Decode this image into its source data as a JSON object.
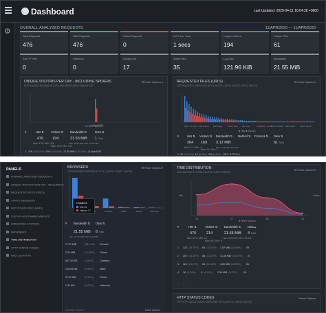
{
  "app": {
    "title": "Dashboard",
    "last_updated": "Last Updated: 2020-04-11 10:04:28 +0800"
  },
  "overall": {
    "title": "OVERALL ANALYZED REQUESTS",
    "date_range": "11/APR/2020 — 11/APR/2020",
    "cards": [
      {
        "label": "Total Requests",
        "value": "476",
        "color": "#8a9099"
      },
      {
        "label": "Valid Requests",
        "value": "476",
        "color": "#3fb34f"
      },
      {
        "label": "Failed Requests",
        "value": "0",
        "color": "#e04545"
      },
      {
        "label": "Init. Proc. Time",
        "value": "1 secs",
        "color": "#8a9099"
      },
      {
        "label": "Unique Visitors",
        "value": "194",
        "color": "#3b82d6"
      },
      {
        "label": "Unique Files",
        "value": "61",
        "color": "#8a9099"
      },
      {
        "label": "Excl. IP Hits",
        "value": "0",
        "color": "#8a9099"
      },
      {
        "label": "Referrers",
        "value": "0",
        "color": "#8a9099"
      },
      {
        "label": "Unique 404",
        "value": "17",
        "color": "#8a9099"
      },
      {
        "label": "Static Files",
        "value": "35",
        "color": "#8a9099"
      },
      {
        "label": "Log Size",
        "value": "121.96 KiB",
        "color": "#8a9099"
      },
      {
        "label": "Bandwidth",
        "value": "21.55 MiB",
        "color": "#8a9099"
      }
    ]
  },
  "visitors_panel": {
    "title": "UNIQUE VISITORS PER DAY - INCLUDING SPIDERS",
    "subtitle": "HITS HAVING THE SAME IP, DATE AND AGENT ARE A UNIQUE VISIT",
    "options": "Panel Options",
    "x_label": "11/Apr/2020",
    "legend": [
      "Hits",
      "Visitors"
    ],
    "headers": [
      "#",
      "Hits",
      "Visitors",
      "Bandwidth",
      "Data"
    ],
    "totals": {
      "hits": "476",
      "visitors": "194",
      "bandwidth": "21.55 MiB",
      "data": "1",
      "data_unit": "Total"
    },
    "subs": {
      "hits": "Max: 476 / Min: 476",
      "visitors": "Max: 194 / Min: 194",
      "bandwidth": "Max: 21.55 MiB / Min: 21.55 MiB"
    },
    "row": {
      "n": "1",
      "hits": "476",
      "hits_pct": "(100.00%)",
      "visitors": "194",
      "visitors_pct": "(100.00%)",
      "bandwidth": "21.55 MiB",
      "bw_pct": "(100.00%)",
      "data": "11/Apr/2020"
    }
  },
  "requests_panel": {
    "title": "REQUESTED FILES (URLS)",
    "subtitle": "TOP REQUESTS SORTED BY HITS [, AVGTS, CUMTS, MAXTS, MTHD, PROTO]",
    "options": "Panel Options",
    "legend": [
      "Hits",
      "Visitors"
    ],
    "x_labels": [
      "GET / HTTP/1.1",
      "GET /admin",
      "GET /login",
      "POST /auth",
      "GET /api",
      "CONNECT / HTTP",
      "POST /upload",
      "GET /static",
      "POST /api/v1"
    ],
    "headers": [
      "#",
      "Hits",
      "Visitors",
      "Bandwidth",
      "Method",
      "Protocol",
      "Data"
    ],
    "totals": {
      "hits": "264",
      "visitors": "169",
      "bandwidth": "3.12 MiB",
      "data": "61",
      "data_unit": "Total"
    },
    "subs": {
      "hits": "Max: 37 / Min: 1",
      "visitors": "Max: 14 / Min: 1",
      "bandwidth": "Max: 1.16 MiB / Min: 0 B"
    },
    "row": {
      "n": "1",
      "hits": "37",
      "hits_pct": "(14.02%)",
      "visitors": "14",
      "visitors_pct": "(8.28%)",
      "bandwidth": "0 B",
      "bw_pct": "(0.00%)",
      "method": "GET",
      "protocol": "HTTP/1.1"
    }
  },
  "panels_nav": {
    "title": "PANELS",
    "items": [
      "OVERALL ANALYZED REQUESTS",
      "UNIQUE VISITORS PER DAY - INCLUDING SPIDERS",
      "REQUESTED FILES (URLS)",
      "STATIC REQUESTS",
      "NOT FOUND URLS (404S)",
      "VISITOR HOSTNAMES AND IPS",
      "OPERATING SYSTEMS",
      "BROWSERS",
      "TIME DISTRIBUTION",
      "HTTP STATUS CODES",
      "GEO LOCATION"
    ],
    "active_index": 8
  },
  "browsers_panel": {
    "title": "BROWSERS",
    "subtitle": "TOP BROWSERS SORTED BY HITS [, AVGTS, CUMTS, MAXTS]",
    "options": "Panel Options",
    "legend": [
      "Hits",
      "Visitors"
    ],
    "tooltip": {
      "title": "Crawlers",
      "hits_label": "hits",
      "hits": "94",
      "visitors_label": "visitors",
      "visitors": "17"
    },
    "headers": [
      "#",
      "Bandwidth",
      "Data"
    ],
    "totals": {
      "bandwidth": "21.55 MiB",
      "data": "6",
      "data_unit": "Total"
    },
    "subs": {
      "bandwidth": "Max: 17.97 MiB / Min: 1.31 KiB"
    },
    "rows": [
      {
        "bandwidth": "17.97 MiB",
        "pct": "(83.41%)",
        "data": "Chrome"
      },
      {
        "bandwidth": "2.51 MiB",
        "pct": "(11.63%)",
        "data": "Others"
      },
      {
        "bandwidth": "847.16 KiB",
        "pct": "(3.84%)",
        "data": "Crawlers"
      },
      {
        "bandwidth": "218.94 KiB",
        "pct": "(0.99%)",
        "data": "MSIE"
      },
      {
        "bandwidth": "27.61 KiB",
        "pct": "(0.13%)",
        "data": "Firefox"
      },
      {
        "bandwidth": "1.31 KiB",
        "pct": "(0.01%)",
        "data": "Unknown"
      }
    ],
    "footer_title": "STATUS CODES",
    "footer_options": "Panel Options",
    "chart": {
      "categories": [
        "Chrome",
        "Others",
        "Crawlers",
        "MSIE",
        "Firefox",
        "Unknown"
      ],
      "hits": [
        300,
        60,
        94,
        10,
        8,
        4
      ],
      "visitors": [
        120,
        20,
        17,
        6,
        5,
        2
      ]
    }
  },
  "time_panel": {
    "title": "TIME DISTRIBUTION",
    "subtitle": "DATA SORTED BY HOUR [, AVGTS, CUMTS, MAXTS]",
    "options": "Panel Options",
    "y_labels": [
      "Hits",
      "Visitors"
    ],
    "legend": [
      "Hits",
      "Visitors"
    ],
    "headers": [
      "#",
      "Hits",
      "Visitors",
      "Bandwidth",
      "Data"
    ],
    "totals": {
      "hits": "476",
      "visitors": "214",
      "bandwidth": "21.55 MiB",
      "data": "4",
      "data_unit": "Total"
    },
    "subs": {
      "hits": "Max: 207 / Min: 16",
      "visitors": "Max: 88 / Min: 9",
      "bandwidth": "Max: 11.86 MiB / Min: 2.06 MiB"
    },
    "rows": [
      {
        "n": "1",
        "hits": "137",
        "hits_pct": "(28.78%)",
        "visitors": "69",
        "visitors_pct": "(32.24%)",
        "bandwidth": "3.57 MiB",
        "bw_pct": "(16.58%)",
        "data": "05"
      },
      {
        "n": "2",
        "hits": "207",
        "hits_pct": "(43.49%)",
        "visitors": "88",
        "visitors_pct": "(41.12%)",
        "bandwidth": "11.86 MiB",
        "bw_pct": "(55.05%)",
        "data": "07"
      },
      {
        "n": "3",
        "hits": "116",
        "hits_pct": "(24.37%)",
        "visitors": "48",
        "visitors_pct": "(22.43%)",
        "bandwidth": "4.05 MiB",
        "bw_pct": "(18.80%)",
        "data": "08"
      },
      {
        "n": "4",
        "hits": "16",
        "hits_pct": "(3.36%)",
        "visitors": "9",
        "visitors_pct": "(4.21%)",
        "bandwidth": "2.06 MiB",
        "bw_pct": "(9.57%)",
        "data": "09"
      }
    ],
    "pager": [
      "‹",
      "›"
    ],
    "footer_title": "HTTP STATUS CODES",
    "footer_subtitle": "TOP HTTP STATUS CODES SORTED BY HITS [, AVGTS, CUMTS, MAXTS]",
    "footer_options": "Panel Options",
    "chart": {
      "hours": [
        "05",
        "07",
        "08",
        "09"
      ],
      "hits": [
        137,
        207,
        116,
        16
      ],
      "visitors": [
        69,
        88,
        48,
        9
      ]
    }
  },
  "colors": {
    "hits": "#3b82d6",
    "visitors": "#e04545",
    "area": "#c24b6b"
  }
}
